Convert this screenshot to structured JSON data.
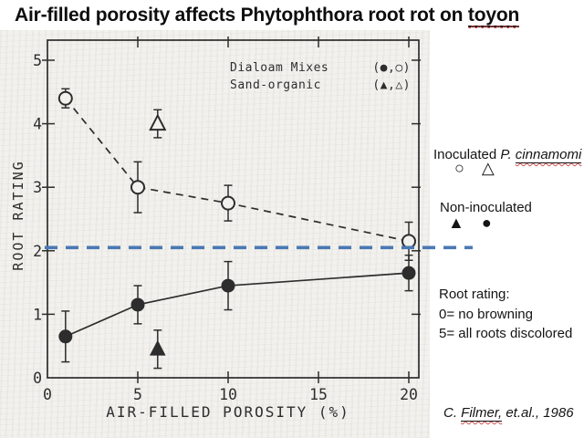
{
  "slide": {
    "title": {
      "text_before": "Air-filled porosity affects Phytophthora root rot on ",
      "underlined_word": "toyon"
    }
  },
  "annotations": {
    "inoculated": {
      "prefix": "Inoculated ",
      "species_italic": "P. ",
      "species_underlined": "cinnamomi",
      "symbols": "○ △"
    },
    "non_inoculated": {
      "label": "Non-inoculated",
      "symbols": "▲ ●"
    },
    "root_rating": {
      "heading": "Root rating:",
      "scale_min": "0= no browning",
      "scale_max": "5= all roots discolored"
    },
    "citation": {
      "prefix": "C. ",
      "underlined": "Filmer,",
      "suffix": " et.al., 1986"
    }
  },
  "chart_data": {
    "type": "scatter",
    "xlabel": "AIR-FILLED POROSITY (%)",
    "ylabel": "ROOT RATING",
    "xlim": [
      0,
      20.6
    ],
    "ylim": [
      0,
      5.3
    ],
    "x_ticks": [
      0,
      5,
      10,
      15,
      20
    ],
    "y_ticks": [
      0,
      1,
      2,
      3,
      4,
      5
    ],
    "grid": false,
    "legend": {
      "position": "top-inside",
      "entries": [
        {
          "label": "Dialoam Mixes",
          "symbols": "(●,○)"
        },
        {
          "label": "Sand-organic",
          "symbols": "(▲,△)"
        }
      ]
    },
    "series": [
      {
        "name": "dialoam-inoculated",
        "marker": "open-circle",
        "line_style": "dashed",
        "points": [
          {
            "x": 1,
            "y": 4.4,
            "yerr": 0.15
          },
          {
            "x": 5,
            "y": 3.0,
            "yerr": 0.4
          },
          {
            "x": 10,
            "y": 2.75,
            "yerr": 0.28
          },
          {
            "x": 20,
            "y": 2.15,
            "yerr": 0.3
          }
        ]
      },
      {
        "name": "dialoam-non-inoculated",
        "marker": "filled-circle",
        "line_style": "solid",
        "points": [
          {
            "x": 1,
            "y": 0.65,
            "yerr": 0.4
          },
          {
            "x": 5,
            "y": 1.15,
            "yerr": 0.3
          },
          {
            "x": 10,
            "y": 1.45,
            "yerr": 0.38
          },
          {
            "x": 20,
            "y": 1.65,
            "yerr": 0.28
          }
        ]
      },
      {
        "name": "sand-organic-inoculated",
        "marker": "open-triangle",
        "line_style": "none",
        "points": [
          {
            "x": 6.1,
            "y": 4.0,
            "yerr": 0.22
          }
        ]
      },
      {
        "name": "sand-organic-non-inoculated",
        "marker": "filled-triangle",
        "line_style": "none",
        "points": [
          {
            "x": 6.1,
            "y": 0.45,
            "yerr": 0.3
          }
        ]
      }
    ],
    "threshold_line": {
      "y": 2.05,
      "style": "dashed",
      "color": "#4a78b4",
      "extends_past_right_edge": true
    }
  },
  "colors": {
    "ink": "#2d2d2d",
    "scan_background": "#f2f1ed",
    "threshold_blue": "#4a78b4",
    "squiggle_red": "#cc5050"
  }
}
